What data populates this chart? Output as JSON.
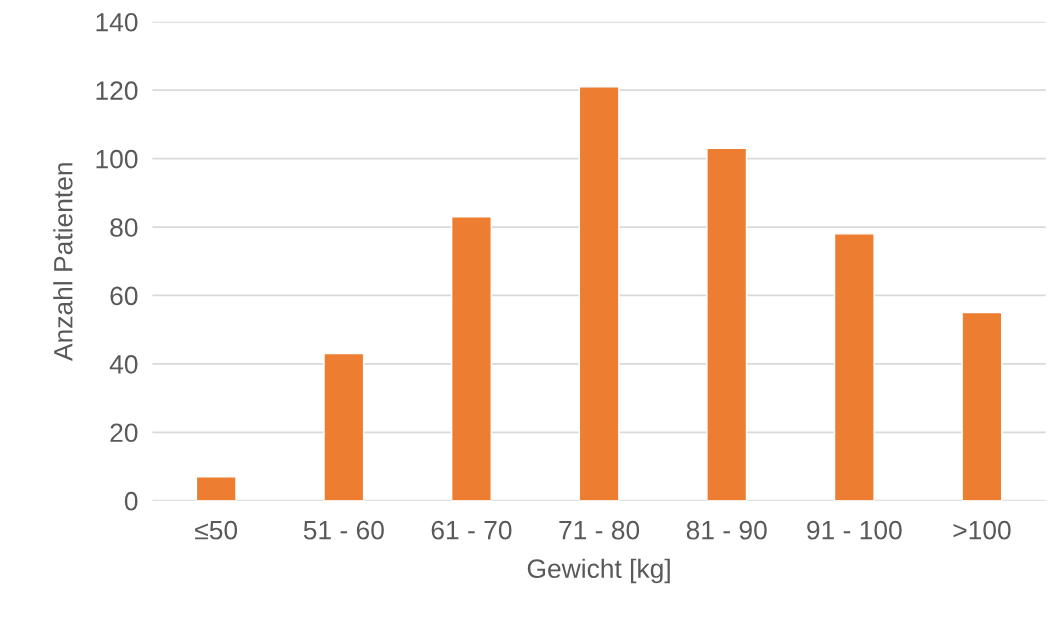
{
  "chart_data": {
    "type": "bar",
    "xlabel": "Gewicht [kg]",
    "ylabel": "Anzahl Patienten",
    "categories": [
      "≤50",
      "51 - 60",
      "61 - 70",
      "71 - 80",
      "81 - 90",
      "91 - 100",
      ">100"
    ],
    "values": [
      7,
      43,
      83,
      121,
      103,
      78,
      55
    ],
    "color": "#ed7d31",
    "ylim": [
      0,
      140
    ],
    "yticks": [
      0,
      20,
      40,
      60,
      80,
      100,
      120,
      140
    ],
    "grid": "y"
  }
}
